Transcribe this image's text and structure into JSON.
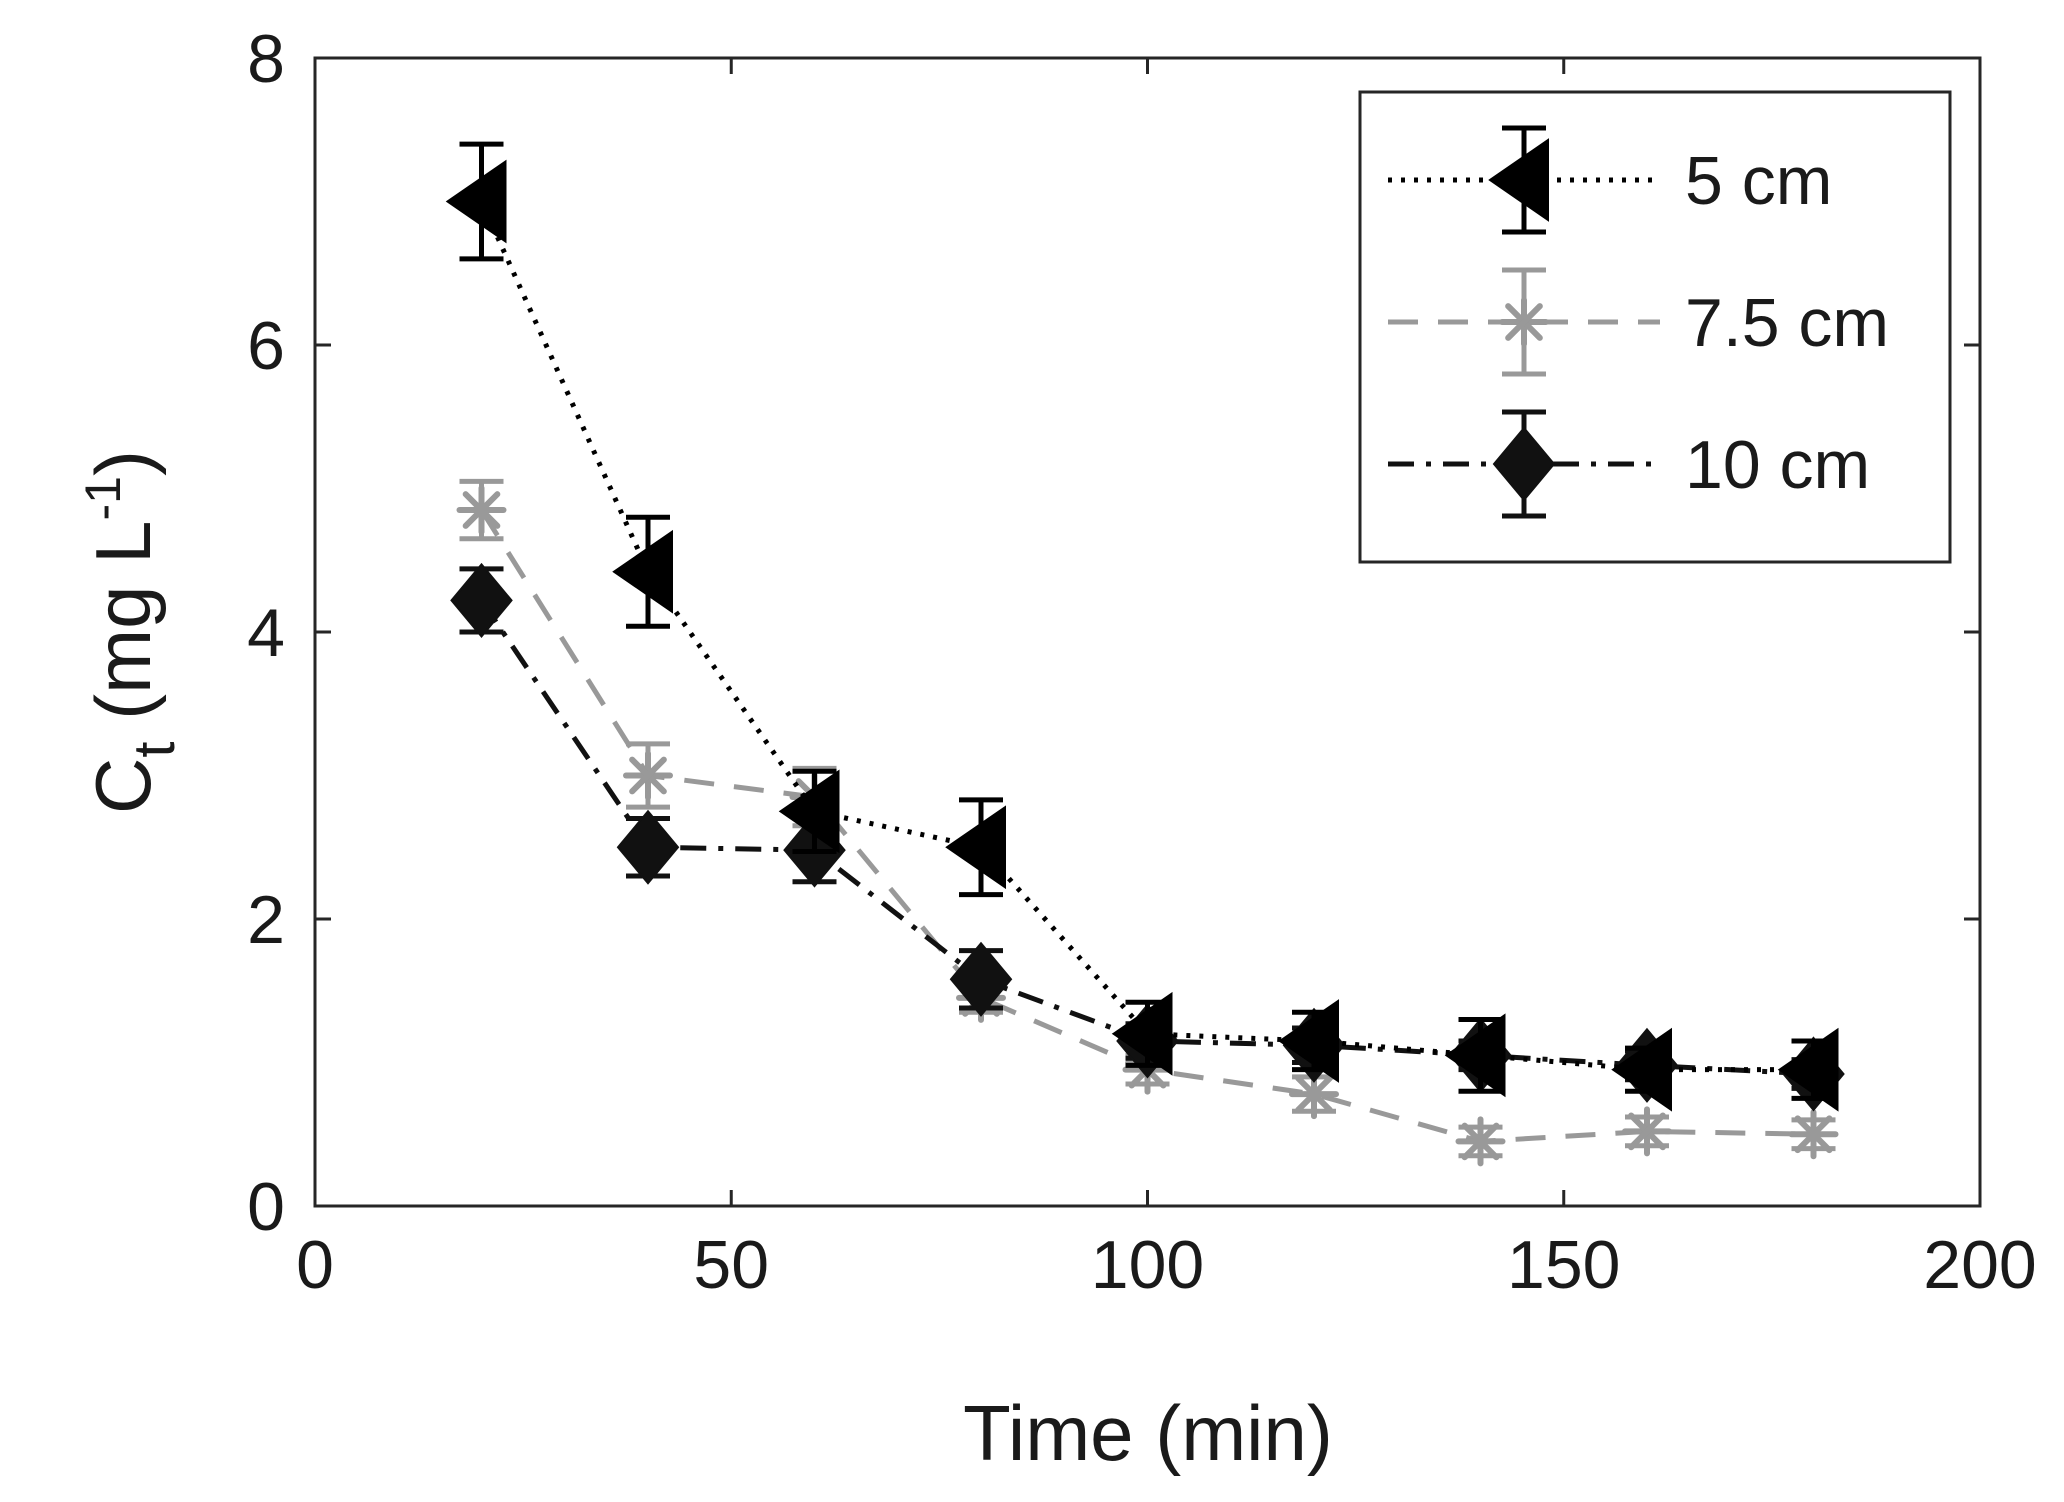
{
  "chart_data": {
    "type": "line",
    "title": "",
    "xlabel": "Time (min)",
    "ylabel": {
      "main": "C",
      "subscript": "t",
      "unit_open": " (mg L",
      "superscript": "-1",
      "unit_close": ")"
    },
    "xlim": [
      0,
      200
    ],
    "ylim": [
      0,
      8
    ],
    "xticks": [
      0,
      50,
      100,
      150,
      200
    ],
    "yticks": [
      0,
      2,
      4,
      6,
      8
    ],
    "xtick_labels": [
      "0",
      "50",
      "100",
      "150",
      "200"
    ],
    "ytick_labels": [
      "0",
      "2",
      "4",
      "6",
      "8"
    ],
    "grid": false,
    "legend_position": "top-right",
    "x": [
      20,
      40,
      60,
      80,
      100,
      120,
      140,
      160,
      180
    ],
    "series": [
      {
        "name": "5 cm",
        "marker": "triangle-left",
        "line_style": "dotted",
        "color": "#000000",
        "values": [
          7.0,
          4.42,
          2.75,
          2.5,
          1.2,
          1.15,
          1.05,
          0.95,
          0.95
        ],
        "errors": [
          0.4,
          0.38,
          0.28,
          0.33,
          0.22,
          0.2,
          0.25,
          0.15,
          0.2
        ]
      },
      {
        "name": "7.5 cm",
        "marker": "asterisk",
        "line_style": "dashed",
        "color": "#999999",
        "values": [
          4.85,
          3.0,
          2.85,
          1.45,
          0.95,
          0.78,
          0.45,
          0.52,
          0.5
        ],
        "errors": [
          0.2,
          0.22,
          0.2,
          0.1,
          0.1,
          0.12,
          0.1,
          0.1,
          0.1
        ]
      },
      {
        "name": "10 cm",
        "marker": "diamond",
        "line_style": "dash-dot",
        "color": "#111111",
        "values": [
          4.22,
          2.5,
          2.48,
          1.58,
          1.15,
          1.12,
          1.05,
          0.98,
          0.92
        ],
        "errors": [
          0.22,
          0.2,
          0.22,
          0.2,
          0.12,
          0.12,
          0.1,
          0.1,
          0.1
        ]
      }
    ]
  }
}
